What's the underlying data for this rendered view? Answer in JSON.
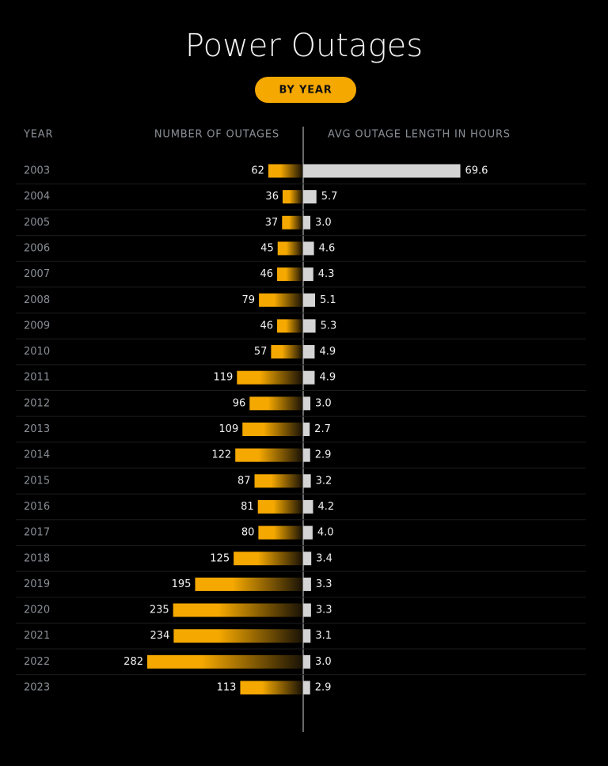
{
  "chart_data": {
    "type": "butterfly-bar",
    "title": "Power Outages",
    "subtitle": "BY YEAR",
    "category_label": "YEAR",
    "categories": [
      "2003",
      "2004",
      "2005",
      "2006",
      "2007",
      "2008",
      "2009",
      "2010",
      "2011",
      "2012",
      "2013",
      "2014",
      "2015",
      "2016",
      "2017",
      "2018",
      "2019",
      "2020",
      "2021",
      "2022",
      "2023"
    ],
    "series": [
      {
        "name": "NUMBER OF OUTAGES",
        "color": "#f5a800",
        "values": [
          62,
          36,
          37,
          45,
          46,
          79,
          46,
          57,
          119,
          96,
          109,
          122,
          87,
          81,
          80,
          125,
          195,
          235,
          234,
          282,
          113
        ]
      },
      {
        "name": "AVG OUTAGE LENGTH IN HOURS",
        "color": "#d4d4d4",
        "values": [
          69.6,
          5.7,
          3,
          4.6,
          4.3,
          5.1,
          5.3,
          4.9,
          4.9,
          3,
          2.7,
          2.9,
          3.2,
          4.2,
          4,
          3.4,
          3.3,
          3.3,
          3.1,
          3,
          2.9
        ],
        "value_labels": [
          "69.6",
          "5.7",
          "3.0",
          "4.6",
          "4.3",
          "5.1",
          "5.3",
          "4.9",
          "4.9",
          "3.0",
          "2.7",
          "2.9",
          "3.2",
          "4.2",
          "4.0",
          "3.4",
          "3.3",
          "3.3",
          "3.1",
          "3.0",
          "2.9"
        ]
      }
    ]
  }
}
